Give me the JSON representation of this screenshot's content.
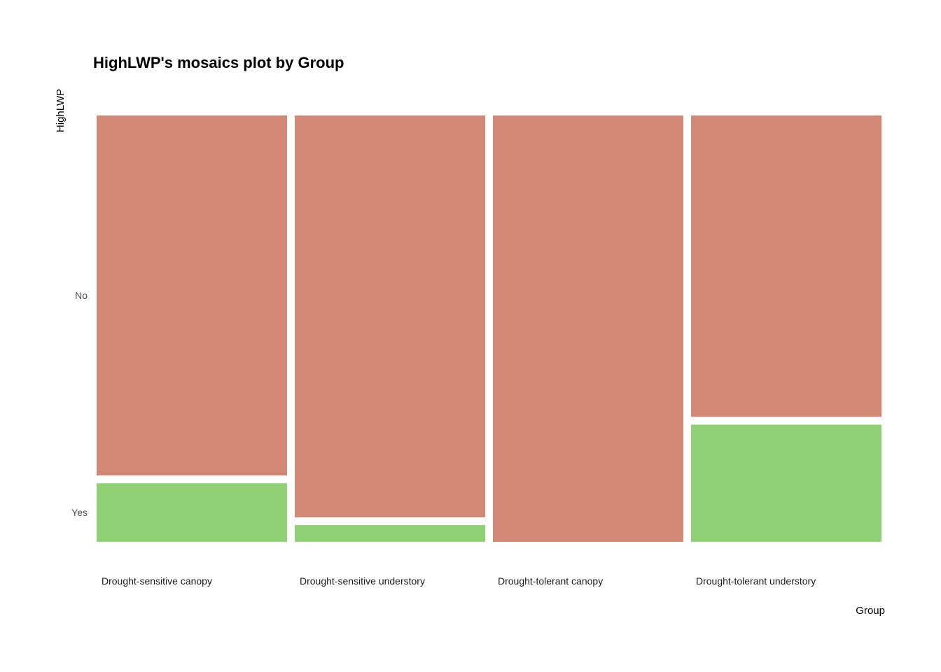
{
  "chart_data": {
    "type": "mosaic",
    "title": "HighLWP's mosaics plot by Group",
    "xlabel": "Group",
    "ylabel": "HighLWP",
    "categories": [
      "Drought-sensitive canopy",
      "Drought-sensitive understory",
      "Drought-tolerant canopy",
      "Drought-tolerant understory"
    ],
    "levels": [
      "No",
      "Yes"
    ],
    "colors": {
      "No": "#d38875",
      "Yes": "#90d175"
    },
    "widths": [
      0.25,
      0.25,
      0.25,
      0.25
    ],
    "proportions": {
      "No": [
        0.86,
        0.96,
        1.0,
        0.72
      ],
      "Yes": [
        0.14,
        0.04,
        0.0,
        0.28
      ]
    },
    "y_ticks": [
      "No",
      "Yes"
    ],
    "legend": "none",
    "grid": false
  }
}
